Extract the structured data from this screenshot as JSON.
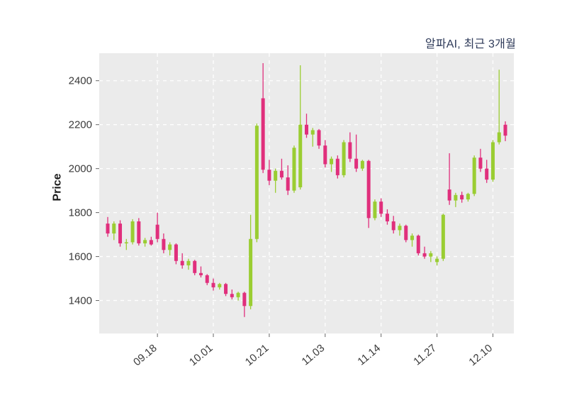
{
  "header": {
    "title": "알파AI, 최근 3개월"
  },
  "chart_data": {
    "type": "candlestick",
    "title": "알파AI, 최근 3개월",
    "xlabel": "",
    "ylabel": "Price",
    "ylim": [
      1250,
      2525
    ],
    "yticks": [
      1400,
      1600,
      1800,
      2000,
      2200,
      2400
    ],
    "xtick_labels": [
      "09.18",
      "10.01",
      "10.21",
      "11.03",
      "11.14",
      "11.27",
      "12.10"
    ],
    "xtick_indices": [
      8,
      17,
      26,
      35,
      44,
      53,
      62
    ],
    "grid": true,
    "grid_style": "dashed",
    "legend": "none",
    "colors": {
      "up": "#9ACD32",
      "down": "#E02F7C",
      "plot_background": "#EBEBEB",
      "grid": "#FFFFFF",
      "tick_text": "#3a3a3a",
      "title_text": "#2e3a59"
    },
    "candles_format": [
      "open",
      "high",
      "low",
      "close"
    ],
    "candles": [
      [
        1750,
        1780,
        1690,
        1705
      ],
      [
        1705,
        1760,
        1675,
        1750
      ],
      [
        1750,
        1765,
        1645,
        1660
      ],
      [
        1660,
        1680,
        1630,
        1665
      ],
      [
        1665,
        1770,
        1655,
        1760
      ],
      [
        1760,
        1775,
        1650,
        1660
      ],
      [
        1660,
        1685,
        1645,
        1675
      ],
      [
        1675,
        1690,
        1650,
        1655
      ],
      [
        1745,
        1800,
        1665,
        1680
      ],
      [
        1680,
        1705,
        1615,
        1630
      ],
      [
        1630,
        1665,
        1605,
        1655
      ],
      [
        1655,
        1660,
        1565,
        1580
      ],
      [
        1580,
        1615,
        1545,
        1560
      ],
      [
        1560,
        1590,
        1540,
        1580
      ],
      [
        1580,
        1585,
        1515,
        1525
      ],
      [
        1525,
        1555,
        1505,
        1515
      ],
      [
        1515,
        1520,
        1470,
        1480
      ],
      [
        1480,
        1500,
        1445,
        1460
      ],
      [
        1460,
        1480,
        1450,
        1475
      ],
      [
        1475,
        1480,
        1420,
        1430
      ],
      [
        1430,
        1450,
        1405,
        1415
      ],
      [
        1415,
        1440,
        1400,
        1435
      ],
      [
        1435,
        1440,
        1325,
        1375
      ],
      [
        1375,
        1790,
        1360,
        1680
      ],
      [
        1680,
        2205,
        1665,
        2195
      ],
      [
        2320,
        2480,
        1980,
        1995
      ],
      [
        1995,
        2040,
        1925,
        1945
      ],
      [
        1945,
        2000,
        1890,
        1990
      ],
      [
        1990,
        2045,
        1950,
        1960
      ],
      [
        1960,
        2015,
        1880,
        1900
      ],
      [
        1900,
        2105,
        1890,
        2095
      ],
      [
        1915,
        2470,
        1905,
        2200
      ],
      [
        2200,
        2250,
        2140,
        2155
      ],
      [
        2155,
        2185,
        2100,
        2175
      ],
      [
        2175,
        2180,
        2090,
        2105
      ],
      [
        2105,
        2130,
        2005,
        2020
      ],
      [
        2020,
        2055,
        1985,
        2045
      ],
      [
        2045,
        2060,
        1955,
        1970
      ],
      [
        1970,
        2130,
        1960,
        2120
      ],
      [
        2120,
        2165,
        2030,
        2045
      ],
      [
        2045,
        2155,
        1985,
        2000
      ],
      [
        2000,
        2040,
        1990,
        2035
      ],
      [
        2035,
        2040,
        1730,
        1775
      ],
      [
        1775,
        1860,
        1765,
        1850
      ],
      [
        1850,
        1865,
        1780,
        1795
      ],
      [
        1795,
        1815,
        1745,
        1760
      ],
      [
        1760,
        1785,
        1705,
        1720
      ],
      [
        1720,
        1750,
        1695,
        1740
      ],
      [
        1740,
        1745,
        1665,
        1675
      ],
      [
        1675,
        1705,
        1645,
        1695
      ],
      [
        1695,
        1700,
        1605,
        1615
      ],
      [
        1615,
        1645,
        1590,
        1600
      ],
      [
        1600,
        1625,
        1575,
        1615
      ],
      [
        1575,
        1600,
        1560,
        1590
      ],
      [
        1590,
        1795,
        1580,
        1790
      ],
      [
        1905,
        2070,
        1835,
        1855
      ],
      [
        1855,
        1890,
        1825,
        1880
      ],
      [
        1880,
        1895,
        1845,
        1860
      ],
      [
        1860,
        1890,
        1850,
        1885
      ],
      [
        1885,
        2060,
        1875,
        2050
      ],
      [
        2050,
        2090,
        1985,
        2000
      ],
      [
        2000,
        2040,
        1935,
        1950
      ],
      [
        1950,
        2130,
        1940,
        2120
      ],
      [
        2120,
        2450,
        2110,
        2165
      ],
      [
        2200,
        2215,
        2125,
        2150
      ]
    ]
  }
}
